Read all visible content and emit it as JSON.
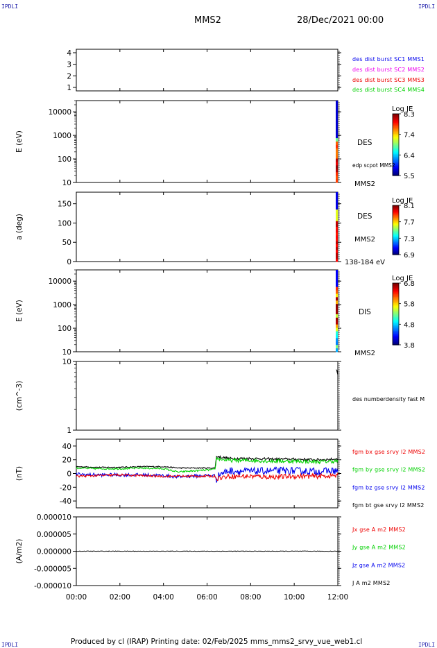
{
  "header": {
    "corner_tl": "IPDLI",
    "corner_tr": "IPDLI",
    "corner_bl": "IPDLI",
    "corner_br": "IPDLI",
    "spacecraft": "MMS2",
    "date": "28/Dec/2021 00:00"
  },
  "footer": {
    "text": "Produced by cl (IRAP)    Printing date: 02/Feb/2025    mms_mms2_srvy_vue_web1.cl"
  },
  "colors": {
    "blue": "#0000ee",
    "magenta": "#ee00ee",
    "red": "#ee0000",
    "green": "#00d000",
    "black": "#000000"
  },
  "chart_data": [
    {
      "type": "line",
      "panel": "spacecraft",
      "ylabel": "",
      "ylim": [
        0.7,
        4.3
      ],
      "yticks": [
        1,
        2,
        3,
        4
      ],
      "ytick_labels": [
        "1",
        "2",
        "3",
        "4"
      ],
      "legend": [
        {
          "text": "des dist burst SC1 MMS1",
          "color": "#0000ee"
        },
        {
          "text": "des dist burst SC2 MMS2",
          "color": "#ee00ee"
        },
        {
          "text": "des dist burst SC3 MMS3",
          "color": "#ee0000"
        },
        {
          "text": "des dist burst SC4 MMS4",
          "color": "#00d000"
        }
      ]
    },
    {
      "type": "heatmap",
      "panel": "des-energy",
      "ylabel": "E (eV)",
      "yscale": "log",
      "ylim": [
        10,
        30000
      ],
      "yticks": [
        10,
        100,
        1000,
        10000
      ],
      "ytick_labels": [
        "10",
        "100",
        "1000",
        "10000"
      ],
      "labels": [
        "DES",
        "edp scpot MMS2",
        "MMS2"
      ],
      "colorbar": {
        "title": "Log JE",
        "ticks": [
          "8.3",
          "7.4",
          "6.4",
          "5.5"
        ]
      }
    },
    {
      "type": "heatmap",
      "panel": "des-pitch",
      "ylabel": "a (deg)",
      "ylim": [
        0,
        180
      ],
      "yticks": [
        0,
        50,
        100,
        150
      ],
      "ytick_labels": [
        "0",
        "50",
        "100",
        "150"
      ],
      "labels": [
        "DES",
        "MMS2",
        "138-184 eV"
      ],
      "colorbar": {
        "title": "Log JE",
        "ticks": [
          "8.1",
          "7.7",
          "7.3",
          "6.9"
        ]
      }
    },
    {
      "type": "heatmap",
      "panel": "dis-energy",
      "ylabel": "E (eV)",
      "yscale": "log",
      "ylim": [
        10,
        30000
      ],
      "yticks": [
        10,
        100,
        1000,
        10000
      ],
      "ytick_labels": [
        "10",
        "100",
        "1000",
        "10000"
      ],
      "labels": [
        "DIS",
        "MMS2"
      ],
      "colorbar": {
        "title": "Log JE",
        "ticks": [
          "6.8",
          "5.8",
          "4.8",
          "3.8"
        ]
      }
    },
    {
      "type": "line",
      "panel": "density",
      "ylabel": "(cm^-3)",
      "yscale": "log",
      "ylim": [
        1,
        10
      ],
      "yticks": [
        1,
        10
      ],
      "ytick_labels": [
        "1",
        "10"
      ],
      "labels": [
        "des numberdensity fast M"
      ]
    },
    {
      "type": "line",
      "panel": "magnetic-field",
      "ylabel": "(nT)",
      "ylim": [
        -50,
        50
      ],
      "yticks": [
        -40,
        -20,
        0,
        20,
        40
      ],
      "ytick_labels": [
        "-40",
        "-20",
        "0",
        "20",
        "40"
      ],
      "legend": [
        {
          "text": "fgm bx gse srvy l2 MMS2",
          "color": "#ee0000"
        },
        {
          "text": "fgm by gse srvy l2 MMS2",
          "color": "#00d000"
        },
        {
          "text": "fgm bz gse srvy l2 MMS2",
          "color": "#0000ee"
        },
        {
          "text": "fgm bt gse srvy l2 MMS2",
          "color": "#000000"
        }
      ],
      "series": [
        {
          "name": "fgm bt gse srvy l2 MMS2",
          "color": "#000000",
          "x": [
            0,
            1,
            2,
            3,
            4,
            4.7,
            5,
            6,
            6.38,
            6.42,
            7,
            8,
            9,
            10,
            11,
            12
          ],
          "y": [
            10,
            9,
            9,
            10,
            10,
            8,
            8,
            8,
            8,
            25,
            22,
            22,
            21,
            21,
            20,
            21
          ]
        },
        {
          "name": "fgm by gse srvy l2 MMS2",
          "color": "#00d000",
          "x": [
            0,
            1,
            2,
            3,
            4,
            4.7,
            5,
            6,
            6.38,
            6.42,
            7,
            8,
            9,
            10,
            11,
            12
          ],
          "y": [
            8,
            7,
            7,
            8,
            7,
            2,
            3,
            5,
            6,
            22,
            19,
            19,
            18,
            18,
            17,
            18
          ]
        },
        {
          "name": "fgm bz gse srvy l2 MMS2",
          "color": "#0000ee",
          "x": [
            0,
            1,
            2,
            3,
            4,
            4.7,
            5,
            6,
            6.38,
            6.42,
            6.6,
            7,
            8,
            9,
            10,
            11,
            12
          ],
          "y": [
            -1,
            -2,
            -2,
            -2,
            -3,
            -5,
            -4,
            -3,
            -3,
            -9,
            0,
            4,
            3,
            4,
            4,
            3,
            4
          ]
        },
        {
          "name": "fgm bx gse srvy l2 MMS2",
          "color": "#ee0000",
          "x": [
            0,
            1,
            2,
            3,
            4,
            5,
            6,
            6.38,
            6.42,
            7,
            8,
            9,
            10,
            11,
            12
          ],
          "y": [
            -4,
            -3,
            -2,
            -3,
            -4,
            -4,
            -4,
            -4,
            -7,
            -4,
            -4,
            -5,
            -4,
            -4,
            -3
          ]
        }
      ]
    },
    {
      "type": "line",
      "panel": "current-density",
      "ylabel": "(A/m2)",
      "xlabel": "",
      "ylim": [
        -1e-05,
        1e-05
      ],
      "yticks": [
        -1e-05,
        -5e-06,
        0,
        5e-06,
        1e-05
      ],
      "ytick_labels": [
        "-0.000010",
        "-0.000005",
        "0.000000",
        "0.000005",
        "0.000010"
      ],
      "xlim": [
        0,
        12
      ],
      "xticks": [
        0,
        2,
        4,
        6,
        8,
        10,
        12
      ],
      "xtick_labels": [
        "00:00",
        "02:00",
        "04:00",
        "06:00",
        "08:00",
        "10:00",
        "12:00"
      ],
      "legend": [
        {
          "text": "Jx gse A m2 MMS2",
          "color": "#ee0000"
        },
        {
          "text": "Jy gse A m2 MMS2",
          "color": "#00d000"
        },
        {
          "text": "Jz gse A m2 MMS2",
          "color": "#0000ee"
        },
        {
          "text": "J A m2 MMS2",
          "color": "#000000"
        }
      ],
      "series": [
        {
          "name": "J A m2 MMS2",
          "color": "#000000",
          "x": [
            0,
            2,
            3,
            4,
            6,
            6.4,
            8,
            10,
            12
          ],
          "y": [
            0,
            0,
            0,
            0,
            0,
            0,
            0,
            0,
            0
          ]
        }
      ]
    }
  ]
}
